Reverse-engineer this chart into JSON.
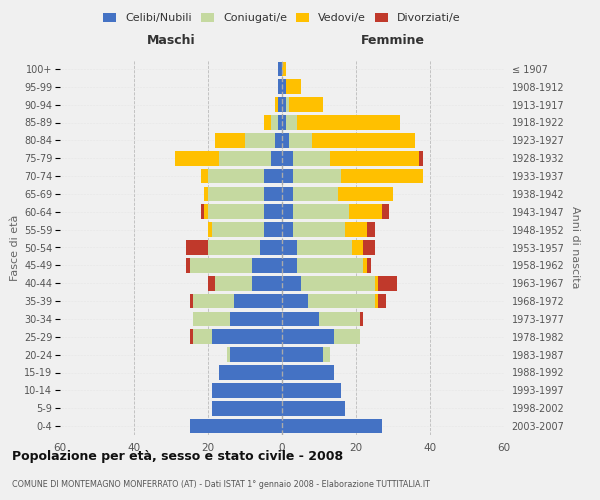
{
  "age_groups": [
    "0-4",
    "5-9",
    "10-14",
    "15-19",
    "20-24",
    "25-29",
    "30-34",
    "35-39",
    "40-44",
    "45-49",
    "50-54",
    "55-59",
    "60-64",
    "65-69",
    "70-74",
    "75-79",
    "80-84",
    "85-89",
    "90-94",
    "95-99",
    "100+"
  ],
  "birth_years": [
    "2003-2007",
    "1998-2002",
    "1993-1997",
    "1988-1992",
    "1983-1987",
    "1978-1982",
    "1973-1977",
    "1968-1972",
    "1963-1967",
    "1958-1962",
    "1953-1957",
    "1948-1952",
    "1943-1947",
    "1938-1942",
    "1933-1937",
    "1928-1932",
    "1923-1927",
    "1918-1922",
    "1913-1917",
    "1908-1912",
    "≤ 1907"
  ],
  "male": {
    "celibi": [
      25,
      19,
      19,
      17,
      14,
      19,
      14,
      13,
      8,
      8,
      6,
      5,
      5,
      5,
      5,
      3,
      2,
      1,
      1,
      1,
      1
    ],
    "coniugati": [
      0,
      0,
      0,
      0,
      1,
      5,
      10,
      11,
      10,
      17,
      14,
      14,
      15,
      15,
      15,
      14,
      8,
      2,
      0,
      0,
      0
    ],
    "vedovi": [
      0,
      0,
      0,
      0,
      0,
      0,
      0,
      0,
      0,
      0,
      0,
      1,
      1,
      1,
      2,
      12,
      8,
      2,
      1,
      0,
      0
    ],
    "divorziati": [
      0,
      0,
      0,
      0,
      0,
      1,
      0,
      1,
      2,
      1,
      6,
      0,
      1,
      0,
      0,
      0,
      0,
      0,
      0,
      0,
      0
    ]
  },
  "female": {
    "nubili": [
      27,
      17,
      16,
      14,
      11,
      14,
      10,
      7,
      5,
      4,
      4,
      3,
      3,
      3,
      3,
      3,
      2,
      1,
      1,
      1,
      0
    ],
    "coniugate": [
      0,
      0,
      0,
      0,
      2,
      7,
      11,
      18,
      20,
      18,
      15,
      14,
      15,
      12,
      13,
      10,
      6,
      3,
      1,
      0,
      0
    ],
    "vedove": [
      0,
      0,
      0,
      0,
      0,
      0,
      0,
      1,
      1,
      1,
      3,
      6,
      9,
      15,
      22,
      24,
      28,
      28,
      9,
      4,
      1
    ],
    "divorziate": [
      0,
      0,
      0,
      0,
      0,
      0,
      1,
      2,
      5,
      1,
      3,
      2,
      2,
      0,
      0,
      1,
      0,
      0,
      0,
      0,
      0
    ]
  },
  "colors": {
    "celibi_nubili": "#4472c4",
    "coniugati": "#c5d9a0",
    "vedovi": "#ffc000",
    "divorziati": "#c0392b"
  },
  "title": "Popolazione per età, sesso e stato civile - 2008",
  "subtitle": "COMUNE DI MONTEMAGNO MONFERRATO (AT) - Dati ISTAT 1° gennaio 2008 - Elaborazione TUTTITALIA.IT",
  "xlabel_left": "Maschi",
  "xlabel_right": "Femmine",
  "ylabel_left": "Fasce di età",
  "ylabel_right": "Anni di nascita",
  "xlim": 60,
  "background_color": "#f0f0f0",
  "grid_color": "#cccccc"
}
